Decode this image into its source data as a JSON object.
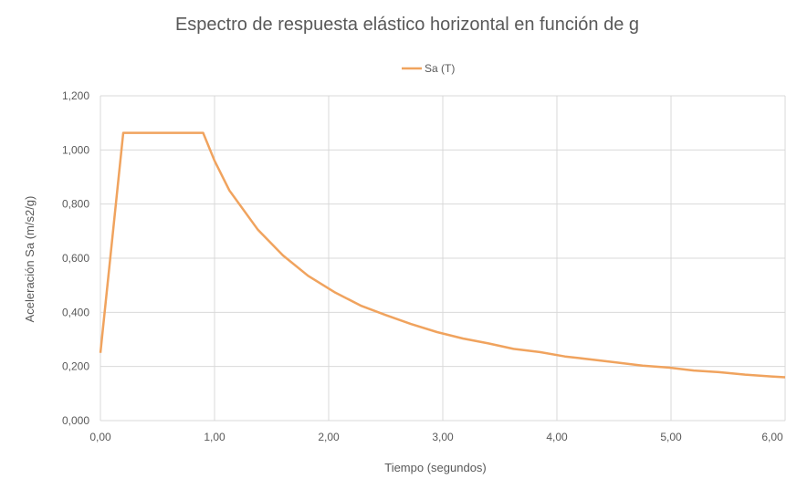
{
  "chart_data": {
    "type": "line",
    "title": "Espectro de respuesta elástico horizontal en función de g",
    "xlabel": "Tiempo (segundos)",
    "ylabel": "Aceleración Sa (m/s2/g)",
    "xlim": [
      0,
      6
    ],
    "ylim": [
      0,
      1.2
    ],
    "x_ticks": [
      "0,00",
      "1,00",
      "2,00",
      "3,00",
      "4,00",
      "5,00",
      "6,00"
    ],
    "y_ticks": [
      "0,000",
      "0,200",
      "0,400",
      "0,600",
      "0,800",
      "1,000",
      "1,200"
    ],
    "grid": true,
    "legend_position": "top",
    "series": [
      {
        "name": "Sa (T)",
        "color": "#f0a35e",
        "x": [
          0.0,
          0.2,
          0.3,
          0.5,
          0.7,
          0.9,
          1.0,
          1.13,
          1.38,
          1.6,
          1.82,
          2.05,
          2.28,
          2.5,
          2.72,
          2.95,
          3.18,
          3.4,
          3.62,
          3.85,
          4.07,
          4.3,
          4.52,
          4.75,
          4.98,
          5.2,
          5.42,
          5.65,
          5.88,
          6.0
        ],
        "y": [
          0.25,
          1.063,
          1.063,
          1.063,
          1.063,
          1.063,
          0.96,
          0.85,
          0.705,
          0.61,
          0.535,
          0.475,
          0.425,
          0.39,
          0.357,
          0.327,
          0.303,
          0.285,
          0.265,
          0.253,
          0.237,
          0.226,
          0.215,
          0.203,
          0.196,
          0.185,
          0.179,
          0.17,
          0.163,
          0.16
        ]
      }
    ]
  }
}
